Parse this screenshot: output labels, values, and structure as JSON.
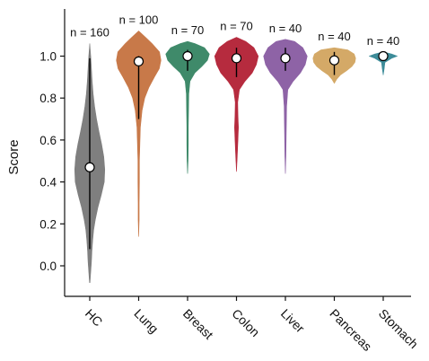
{
  "chart_data": {
    "type": "violin",
    "title": "",
    "xlabel": "",
    "ylabel": "Score",
    "ylim": [
      -0.12,
      1.14
    ],
    "yticks": [
      "0.0",
      "0.2",
      "0.4",
      "0.6",
      "0.8",
      "1.0"
    ],
    "grid": false,
    "categories": [
      "HC",
      "Lung",
      "Breast",
      "Colon",
      "Liver",
      "Pancreas",
      "Stomach"
    ],
    "series": [
      {
        "category": "HC",
        "n_label": "n = 160",
        "color": "#7f7f7f",
        "median": 0.47,
        "q1": 0.08,
        "q3": 0.99,
        "min": -0.08,
        "max": 1.06,
        "density": [
          [
            -0.08,
            0.01
          ],
          [
            -0.03,
            0.04
          ],
          [
            0.02,
            0.07
          ],
          [
            0.07,
            0.09
          ],
          [
            0.12,
            0.12
          ],
          [
            0.17,
            0.16
          ],
          [
            0.22,
            0.23
          ],
          [
            0.28,
            0.34
          ],
          [
            0.34,
            0.48
          ],
          [
            0.4,
            0.6
          ],
          [
            0.46,
            0.62
          ],
          [
            0.52,
            0.58
          ],
          [
            0.58,
            0.49
          ],
          [
            0.64,
            0.38
          ],
          [
            0.7,
            0.28
          ],
          [
            0.76,
            0.2
          ],
          [
            0.82,
            0.14
          ],
          [
            0.88,
            0.1
          ],
          [
            0.94,
            0.07
          ],
          [
            1.0,
            0.04
          ],
          [
            1.06,
            0.0
          ]
        ]
      },
      {
        "category": "Lung",
        "n_label": "n = 100",
        "color": "#c87949",
        "median": 0.975,
        "q1": 0.7,
        "q3": 1.0,
        "min": 0.14,
        "max": 1.12,
        "density": [
          [
            0.14,
            0.0
          ],
          [
            0.22,
            0.02
          ],
          [
            0.3,
            0.02
          ],
          [
            0.4,
            0.03
          ],
          [
            0.5,
            0.03
          ],
          [
            0.58,
            0.05
          ],
          [
            0.66,
            0.07
          ],
          [
            0.74,
            0.14
          ],
          [
            0.8,
            0.25
          ],
          [
            0.85,
            0.42
          ],
          [
            0.9,
            0.65
          ],
          [
            0.94,
            0.85
          ],
          [
            0.98,
            0.92
          ],
          [
            1.02,
            0.86
          ],
          [
            1.06,
            0.55
          ],
          [
            1.09,
            0.28
          ],
          [
            1.12,
            0.0
          ]
        ]
      },
      {
        "category": "Breast",
        "n_label": "n = 70",
        "color": "#3f8a6a",
        "median": 1.0,
        "q1": 0.93,
        "q3": 1.03,
        "min": 0.44,
        "max": 1.07,
        "density": [
          [
            0.44,
            0.0
          ],
          [
            0.5,
            0.02
          ],
          [
            0.58,
            0.03
          ],
          [
            0.66,
            0.03
          ],
          [
            0.74,
            0.04
          ],
          [
            0.82,
            0.05
          ],
          [
            0.88,
            0.1
          ],
          [
            0.92,
            0.3
          ],
          [
            0.95,
            0.58
          ],
          [
            0.98,
            0.82
          ],
          [
            1.01,
            0.9
          ],
          [
            1.04,
            0.7
          ],
          [
            1.06,
            0.3
          ],
          [
            1.07,
            0.0
          ]
        ]
      },
      {
        "category": "Colon",
        "n_label": "n = 70",
        "color": "#b62b3e",
        "median": 0.99,
        "q1": 0.9,
        "q3": 1.04,
        "min": 0.45,
        "max": 1.09,
        "density": [
          [
            0.45,
            0.0
          ],
          [
            0.52,
            0.03
          ],
          [
            0.6,
            0.06
          ],
          [
            0.66,
            0.08
          ],
          [
            0.72,
            0.06
          ],
          [
            0.78,
            0.05
          ],
          [
            0.84,
            0.12
          ],
          [
            0.88,
            0.35
          ],
          [
            0.92,
            0.65
          ],
          [
            0.96,
            0.82
          ],
          [
            1.0,
            0.9
          ],
          [
            1.04,
            0.72
          ],
          [
            1.07,
            0.38
          ],
          [
            1.09,
            0.0
          ]
        ]
      },
      {
        "category": "Liver",
        "n_label": "n = 40",
        "color": "#8e63a6",
        "median": 0.99,
        "q1": 0.93,
        "q3": 1.04,
        "min": 0.44,
        "max": 1.08,
        "density": [
          [
            0.44,
            0.0
          ],
          [
            0.52,
            0.02
          ],
          [
            0.6,
            0.03
          ],
          [
            0.68,
            0.04
          ],
          [
            0.76,
            0.05
          ],
          [
            0.84,
            0.1
          ],
          [
            0.88,
            0.32
          ],
          [
            0.92,
            0.62
          ],
          [
            0.96,
            0.82
          ],
          [
            1.0,
            0.9
          ],
          [
            1.04,
            0.72
          ],
          [
            1.07,
            0.38
          ],
          [
            1.08,
            0.0
          ]
        ]
      },
      {
        "category": "Pancreas",
        "n_label": "n = 40",
        "color": "#d4a967",
        "median": 0.98,
        "q1": 0.91,
        "q3": 1.02,
        "min": 0.87,
        "max": 1.04,
        "density": [
          [
            0.87,
            0.0
          ],
          [
            0.89,
            0.1
          ],
          [
            0.91,
            0.25
          ],
          [
            0.93,
            0.5
          ],
          [
            0.95,
            0.72
          ],
          [
            0.97,
            0.85
          ],
          [
            0.99,
            0.88
          ],
          [
            1.01,
            0.82
          ],
          [
            1.03,
            0.55
          ],
          [
            1.04,
            0.0
          ]
        ]
      },
      {
        "category": "Stomach",
        "n_label": "n = 40",
        "color": "#3d8c99",
        "median": 1.0,
        "q1": 0.99,
        "q3": 1.01,
        "min": 0.91,
        "max": 1.02,
        "density": [
          [
            0.91,
            0.0
          ],
          [
            0.94,
            0.04
          ],
          [
            0.97,
            0.07
          ],
          [
            0.99,
            0.35
          ],
          [
            1.0,
            0.58
          ],
          [
            1.01,
            0.35
          ],
          [
            1.02,
            0.0
          ]
        ]
      }
    ]
  }
}
